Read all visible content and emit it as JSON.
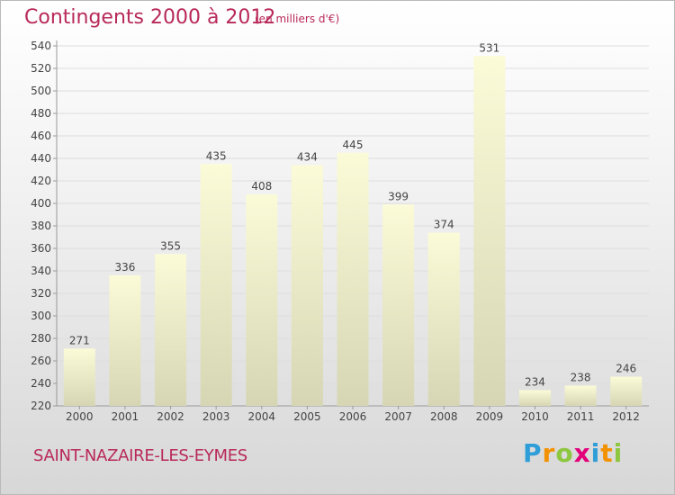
{
  "title": "Contingents 2000 à 2012",
  "subtitle": "(en milliers d'€)",
  "commune": "SAINT-NAZAIRE-LES-EYMES",
  "logo": {
    "letters": [
      "P",
      "r",
      "o",
      "x",
      "i",
      "t",
      "i"
    ],
    "colors": [
      "#2f9ed8",
      "#f39200",
      "#8dc63f",
      "#e2007a",
      "#2f9ed8",
      "#f39200",
      "#8dc63f"
    ]
  },
  "colors": {
    "title": "#b8295a",
    "bar_top": "#fbfbd8",
    "bar_bottom": "#d6d6b4",
    "grid": "#dddddd",
    "axis": "#999999"
  },
  "chart_data": {
    "type": "bar",
    "categories": [
      "2000",
      "2001",
      "2002",
      "2003",
      "2004",
      "2005",
      "2006",
      "2007",
      "2008",
      "2009",
      "2010",
      "2011",
      "2012"
    ],
    "values": [
      271,
      336,
      355,
      435,
      408,
      434,
      445,
      399,
      374,
      531,
      234,
      238,
      246
    ],
    "ylim": [
      220,
      540
    ],
    "yticks": [
      220,
      240,
      260,
      280,
      300,
      320,
      340,
      360,
      380,
      400,
      420,
      440,
      460,
      480,
      500,
      520,
      540
    ],
    "grid": true,
    "data_labels": true
  }
}
